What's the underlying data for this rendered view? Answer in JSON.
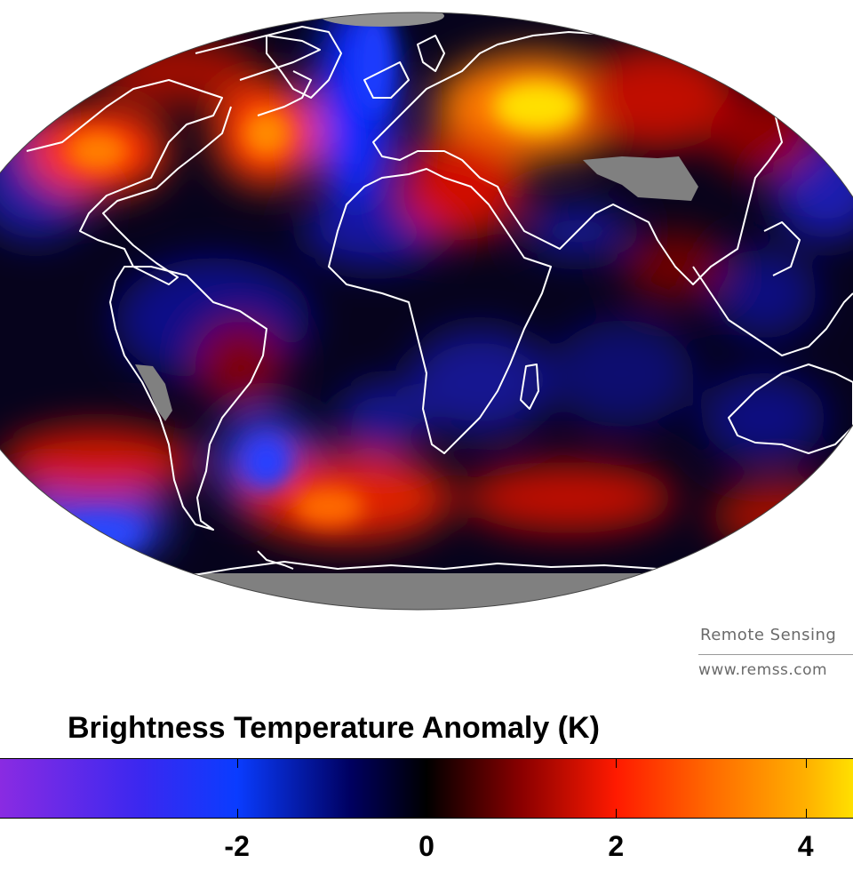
{
  "credit": {
    "line1": "Remote Sensing",
    "line2": "www.remss.com"
  },
  "colorbar": {
    "title": "Brightness Temperature Anomaly (K)",
    "range": [
      -4.5,
      4.5
    ],
    "ticks": [
      "-2",
      "0",
      "2",
      "4"
    ],
    "tick_values": [
      -2,
      0,
      2,
      4
    ],
    "stops": [
      {
        "value": -4.5,
        "color": "#8a2be2"
      },
      {
        "value": -3.0,
        "color": "#3a28f0"
      },
      {
        "value": -2.0,
        "color": "#0a3cff"
      },
      {
        "value": -0.8,
        "color": "#000060"
      },
      {
        "value": 0.0,
        "color": "#000000"
      },
      {
        "value": 1.0,
        "color": "#8a0000"
      },
      {
        "value": 2.0,
        "color": "#ff1a00"
      },
      {
        "value": 3.0,
        "color": "#ff6a00"
      },
      {
        "value": 4.0,
        "color": "#ffb000"
      },
      {
        "value": 4.5,
        "color": "#ffe000"
      }
    ]
  },
  "map": {
    "projection": "mollweide",
    "missing_data_color": "#808080",
    "coastline_color": "#ffffff"
  }
}
